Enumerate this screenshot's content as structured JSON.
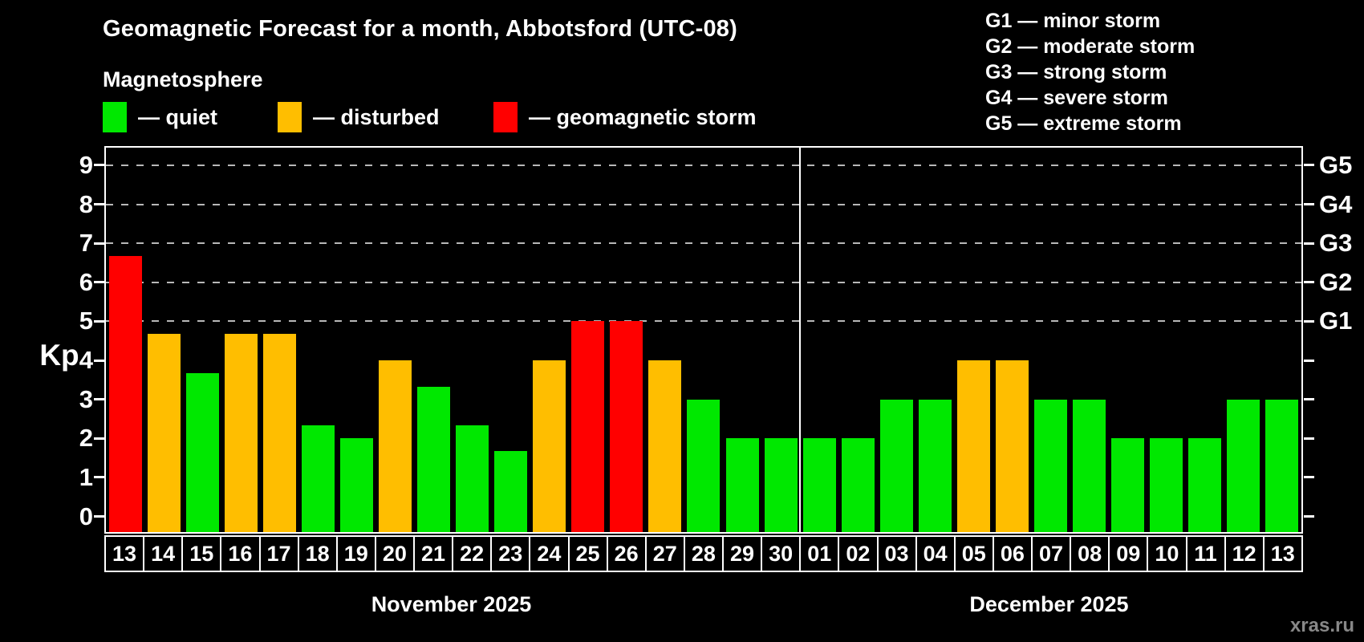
{
  "title": "Geomagnetic Forecast for a month, Abbotsford (UTC-08)",
  "subtitle": "Magnetosphere",
  "watermark": "xras.ru",
  "legend": [
    {
      "key": "quiet",
      "label": "— quiet",
      "color": "#00e800"
    },
    {
      "key": "disturbed",
      "label": "— disturbed",
      "color": "#ffbe00"
    },
    {
      "key": "storm",
      "label": "— geomagnetic storm",
      "color": "#ff0000"
    }
  ],
  "g_scale_legend": [
    "G1 — minor storm",
    "G2 — moderate storm",
    "G3 — strong storm",
    "G4 — severe storm",
    "G5 — extreme storm"
  ],
  "chart_data": {
    "type": "bar",
    "title": "Geomagnetic Forecast for a month, Abbotsford (UTC-08)",
    "xlabel": "",
    "ylabel": "Kp",
    "ylim": [
      0,
      9
    ],
    "yticks": [
      0,
      1,
      2,
      3,
      4,
      5,
      6,
      7,
      8,
      9
    ],
    "gridlines_at_kp": [
      5,
      6,
      7,
      8,
      9
    ],
    "grid": "horizontal dashed",
    "legend_position": "top-left",
    "right_axis": [
      {
        "label": "G1",
        "kp": 5
      },
      {
        "label": "G2",
        "kp": 6
      },
      {
        "label": "G3",
        "kp": 7
      },
      {
        "label": "G4",
        "kp": 8
      },
      {
        "label": "G5",
        "kp": 9
      }
    ],
    "colors": {
      "quiet": "#00e800",
      "disturbed": "#ffbe00",
      "storm": "#ff0000"
    },
    "months": [
      {
        "label": "November 2025",
        "days": [
          {
            "day": "13",
            "kp": 6.67,
            "status": "storm"
          },
          {
            "day": "14",
            "kp": 4.67,
            "status": "disturbed"
          },
          {
            "day": "15",
            "kp": 3.67,
            "status": "quiet"
          },
          {
            "day": "16",
            "kp": 4.67,
            "status": "disturbed"
          },
          {
            "day": "17",
            "kp": 4.67,
            "status": "disturbed"
          },
          {
            "day": "18",
            "kp": 2.33,
            "status": "quiet"
          },
          {
            "day": "19",
            "kp": 2,
            "status": "quiet"
          },
          {
            "day": "20",
            "kp": 4,
            "status": "disturbed"
          },
          {
            "day": "21",
            "kp": 3.33,
            "status": "quiet"
          },
          {
            "day": "22",
            "kp": 2.33,
            "status": "quiet"
          },
          {
            "day": "23",
            "kp": 1.67,
            "status": "quiet"
          },
          {
            "day": "24",
            "kp": 4,
            "status": "disturbed"
          },
          {
            "day": "25",
            "kp": 5,
            "status": "storm"
          },
          {
            "day": "26",
            "kp": 5,
            "status": "storm"
          },
          {
            "day": "27",
            "kp": 4,
            "status": "disturbed"
          },
          {
            "day": "28",
            "kp": 3,
            "status": "quiet"
          },
          {
            "day": "29",
            "kp": 2,
            "status": "quiet"
          },
          {
            "day": "30",
            "kp": 2,
            "status": "quiet"
          }
        ]
      },
      {
        "label": "December 2025",
        "days": [
          {
            "day": "01",
            "kp": 2,
            "status": "quiet"
          },
          {
            "day": "02",
            "kp": 2,
            "status": "quiet"
          },
          {
            "day": "03",
            "kp": 3,
            "status": "quiet"
          },
          {
            "day": "04",
            "kp": 3,
            "status": "quiet"
          },
          {
            "day": "05",
            "kp": 4,
            "status": "disturbed"
          },
          {
            "day": "06",
            "kp": 4,
            "status": "disturbed"
          },
          {
            "day": "07",
            "kp": 3,
            "status": "quiet"
          },
          {
            "day": "08",
            "kp": 3,
            "status": "quiet"
          },
          {
            "day": "09",
            "kp": 2,
            "status": "quiet"
          },
          {
            "day": "10",
            "kp": 2,
            "status": "quiet"
          },
          {
            "day": "11",
            "kp": 2,
            "status": "quiet"
          },
          {
            "day": "12",
            "kp": 3,
            "status": "quiet"
          },
          {
            "day": "13",
            "kp": 3,
            "status": "quiet"
          }
        ]
      }
    ]
  }
}
